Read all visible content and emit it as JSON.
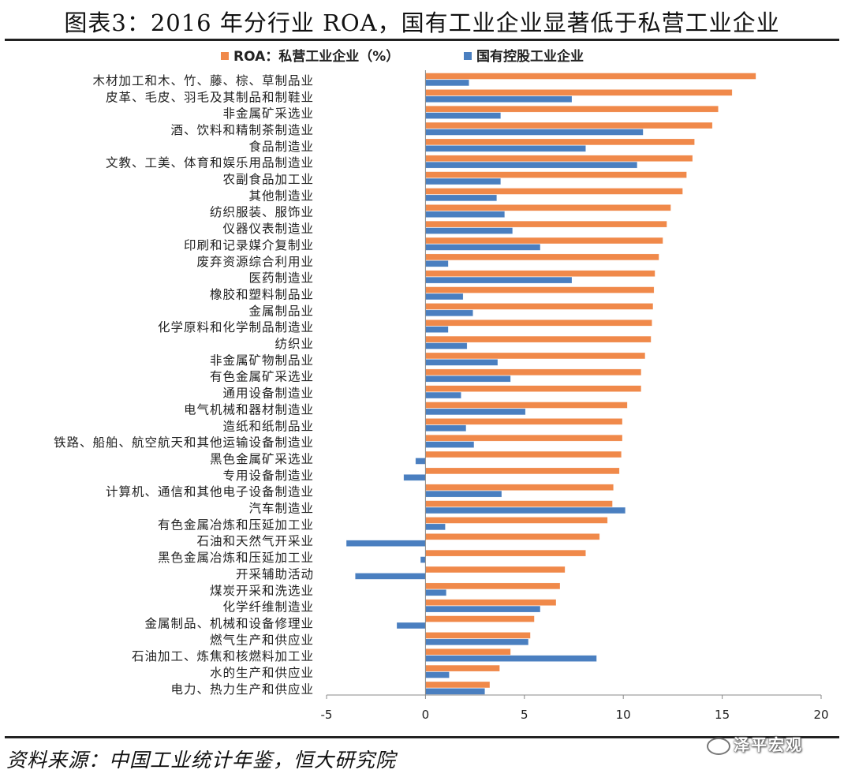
{
  "title": "图表3：2016 年分行业 ROA，国有工业企业显著低于私营工业企业",
  "source": "资料来源：中国工业统计年鉴，恒大研究院",
  "watermark": "泽平宏观",
  "colors": {
    "private": "#f0894a",
    "state": "#4a7fc0"
  },
  "chart_data": {
    "type": "bar",
    "orientation": "horizontal",
    "categories": [
      "木材加工和木、竹、藤、棕、草制品业",
      "皮革、毛皮、羽毛及其制品和制鞋业",
      "非金属矿采选业",
      "酒、饮料和精制茶制造业",
      "食品制造业",
      "文教、工美、体育和娱乐用品制造业",
      "农副食品加工业",
      "其他制造业",
      "纺织服装、服饰业",
      "仪器仪表制造业",
      "印刷和记录媒介复制业",
      "废弃资源综合利用业",
      "医药制造业",
      "橡胶和塑料制品业",
      "金属制品业",
      "化学原料和化学制品制造业",
      "纺织业",
      "非金属矿物制品业",
      "有色金属矿采选业",
      "通用设备制造业",
      "电气机械和器材制造业",
      "造纸和纸制品业",
      "铁路、船舶、航空航天和其他运输设备制造业",
      "黑色金属矿采选业",
      "专用设备制造业",
      "计算机、通信和其他电子设备制造业",
      "汽车制造业",
      "有色金属冶炼和压延加工业",
      "石油和天然气开采业",
      "黑色金属冶炼和压延加工业",
      "开采辅助活动",
      "煤炭开采和洗选业",
      "化学纤维制造业",
      "金属制品、机械和设备修理业",
      "燃气生产和供应业",
      "石油加工、炼焦和核燃料加工业",
      "水的生产和供应业",
      "电力、热力生产和供应业"
    ],
    "series": [
      {
        "name": "ROA：私营工业企业（%）",
        "values": [
          16.7,
          15.5,
          14.8,
          14.5,
          13.6,
          13.5,
          13.2,
          13.0,
          12.4,
          12.2,
          12.0,
          11.8,
          11.6,
          11.55,
          11.5,
          11.45,
          11.4,
          11.1,
          10.9,
          10.9,
          10.2,
          9.95,
          9.95,
          9.9,
          9.8,
          9.5,
          9.45,
          9.2,
          8.8,
          8.1,
          7.05,
          6.8,
          6.6,
          5.5,
          5.3,
          4.3,
          3.75,
          3.25
        ]
      },
      {
        "name": "国有控股工业企业",
        "values": [
          2.2,
          7.4,
          3.8,
          11.0,
          8.1,
          10.7,
          3.8,
          3.6,
          4.0,
          4.4,
          5.8,
          1.15,
          7.4,
          1.9,
          2.4,
          1.15,
          2.1,
          3.65,
          4.3,
          1.8,
          5.05,
          2.05,
          2.45,
          -0.5,
          -1.1,
          3.85,
          10.1,
          1.0,
          -4.0,
          -0.25,
          -3.55,
          1.05,
          5.8,
          -1.45,
          5.2,
          8.65,
          1.2,
          3.0
        ]
      }
    ],
    "xlim": [
      -5,
      20
    ],
    "xticks": [
      -5,
      0,
      5,
      10,
      15,
      20
    ],
    "legend": "top",
    "grid": false
  }
}
